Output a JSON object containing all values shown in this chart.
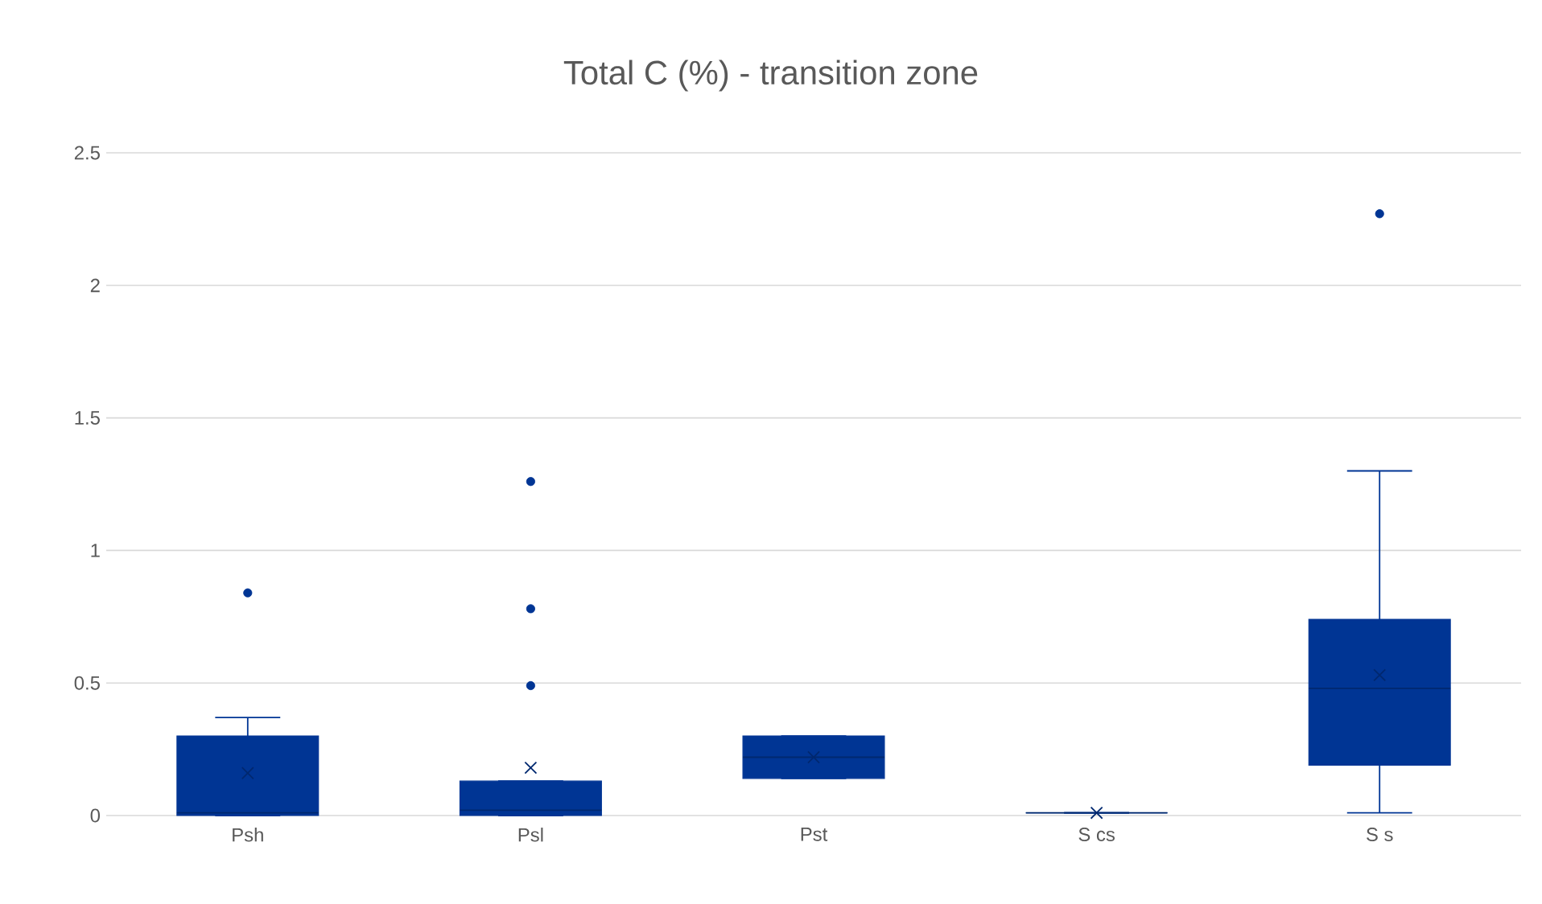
{
  "chart_data": {
    "type": "box",
    "title": "Total C (%) - transition zone",
    "categories": [
      "Psh",
      "Psl",
      "Pst",
      "S cs",
      "S s"
    ],
    "color": "#003594",
    "boxes": [
      {
        "low": 0,
        "q1": 0,
        "median": 0.01,
        "q3": 0.3,
        "high": 0.37,
        "mean": 0.16,
        "outliers": [
          0.84
        ]
      },
      {
        "low": 0,
        "q1": 0,
        "median": 0.02,
        "q3": 0.13,
        "high": 0.13,
        "mean": 0.18,
        "outliers": [
          1.26,
          0.78,
          0.49
        ]
      },
      {
        "low": 0.14,
        "q1": 0.14,
        "median": 0.22,
        "q3": 0.3,
        "high": 0.3,
        "mean": 0.22
      },
      {
        "low": 0.01,
        "q1": 0.01,
        "median": 0.01,
        "q3": 0.01,
        "high": 0.01,
        "mean": 0.01
      },
      {
        "low": 0.01,
        "q1": 0.19,
        "median": 0.48,
        "q3": 0.74,
        "high": 1.3,
        "mean": 0.53,
        "outliers": [
          2.27
        ]
      }
    ],
    "ylim": [
      0,
      2.5
    ],
    "yticks": [
      0,
      0.5,
      1,
      1.5,
      2,
      2.5
    ],
    "grid": "y"
  }
}
